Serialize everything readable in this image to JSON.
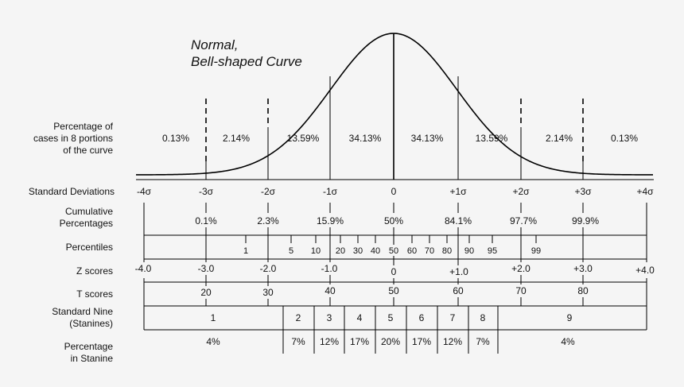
{
  "title": [
    "Normal,",
    "Bell-shaped Curve"
  ],
  "row_labels": {
    "percentage_cases": [
      "Percentage of",
      "cases in 8 portions",
      "of the curve"
    ],
    "standard_deviations": "Standard Deviations",
    "cumulative": [
      "Cumulative",
      "Percentages"
    ],
    "percentiles": "Percentiles",
    "z_scores": "Z scores",
    "t_scores": "T scores",
    "stanines": [
      "Standard Nine",
      "(Stanines)"
    ],
    "percentage_stanine": [
      "Percentage",
      "in Stanine"
    ]
  },
  "portion_percentages": [
    "0.13%",
    "2.14%",
    "13.59%",
    "34.13%",
    "34.13%",
    "13.59%",
    "2.14%",
    "0.13%"
  ],
  "standard_deviations": [
    "-4σ",
    "-3σ",
    "-2σ",
    "-1σ",
    "0",
    "+1σ",
    "+2σ",
    "+3σ",
    "+4σ"
  ],
  "cumulative_percentages": [
    "0.1%",
    "2.3%",
    "15.9%",
    "50%",
    "84.1%",
    "97.7%",
    "99.9%"
  ],
  "percentiles": [
    "1",
    "5",
    "10",
    "20",
    "30",
    "40",
    "50",
    "60",
    "70",
    "80",
    "90",
    "95",
    "99"
  ],
  "z_scores": [
    "-4.0",
    "-3.0",
    "-2.0",
    "-1.0",
    "0",
    "+1.0",
    "+2.0",
    "+3.0",
    "+4.0"
  ],
  "t_scores": [
    "20",
    "30",
    "40",
    "50",
    "60",
    "70",
    "80"
  ],
  "stanines": [
    "1",
    "2",
    "3",
    "4",
    "5",
    "6",
    "7",
    "8",
    "9"
  ],
  "stanine_percentages": [
    "4%",
    "7%",
    "12%",
    "17%",
    "20%",
    "17%",
    "12%",
    "7%",
    "4%"
  ]
}
